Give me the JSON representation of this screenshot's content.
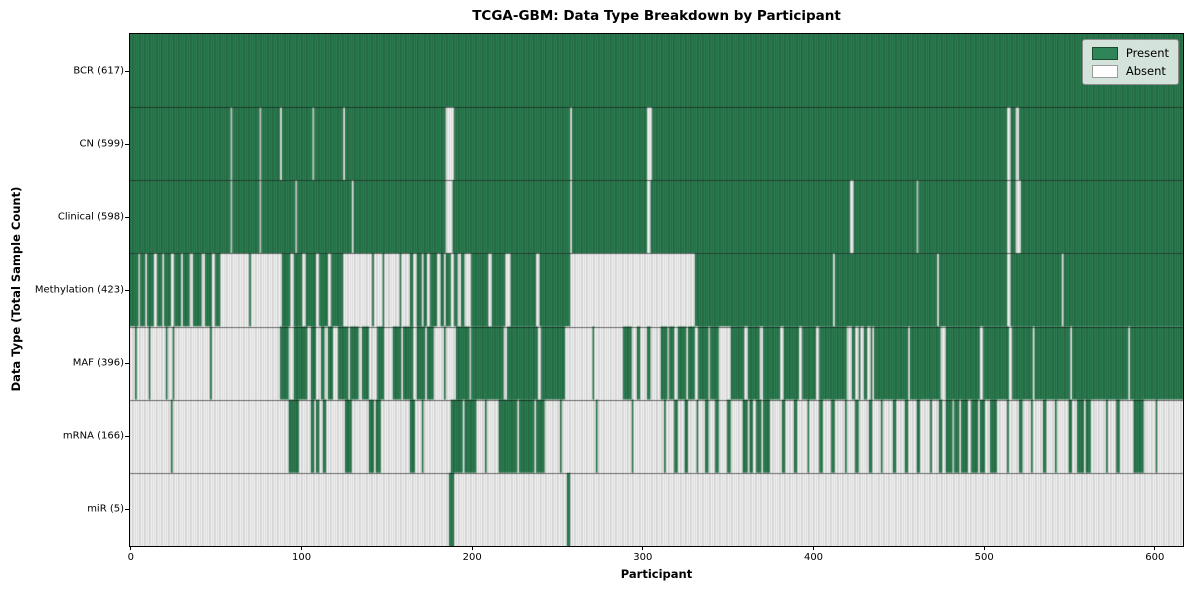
{
  "figure": {
    "title": "TCGA-GBM: Data Type Breakdown by Participant",
    "xlabel": "Participant",
    "ylabel": "Data Type (Total Sample Count)"
  },
  "legend": {
    "present_label": "Present",
    "absent_label": "Absent"
  },
  "chart_data": {
    "type": "heatmap",
    "title": "TCGA-GBM: Data Type Breakdown by Participant",
    "xlabel": "Participant",
    "ylabel": "Data Type (Total Sample Count)",
    "legend_position": "upper right",
    "legend_entries": [
      "Present",
      "Absent"
    ],
    "grid": false,
    "x_ticks": [
      0,
      100,
      200,
      300,
      400,
      500,
      600
    ],
    "x_range": [
      0,
      617
    ],
    "n_participants": 617,
    "colors": {
      "present": "#2f8557",
      "present_edge": "#1b4a2e",
      "absent": "#ffffff",
      "absent_edge": "#9b9b9b",
      "row_divider": "rgba(0,0,0,0.55)",
      "axis": "#000000"
    },
    "rows": [
      {
        "data_type": "BCR",
        "label": "BCR (617)",
        "present_count": 617,
        "runs": "617P"
      },
      {
        "data_type": "CN",
        "label": "CN (599)",
        "present_count": 599,
        "runs": "59P 1A 16P 1A 11P 1A 18P 1A 17P 1A 59P 5A 68P 1A 44P 3A 208P 2A 3P 2A 96P"
      },
      {
        "data_type": "Clinical",
        "label": "Clinical (598)",
        "present_count": 598,
        "runs": "59P 1A 16P 1A 20P 1A 32P 1A 54P 4A 69P 1A 44P 2A 117P 2A 37P 1A 52P 2A 3P 3A 95P"
      },
      {
        "data_type": "Methylation",
        "label": "Methylation (423)",
        "present_count": 423,
        "runs": "5P 1A 3P 1A 4P 2A 3P 1A 4P 2A 4P 1A 4P 2A 5P 2A 4P 2A 3P 3A 14A 1P 18A 5P 2A 5P 2A 6P 2A 5P 2A 7P 13A 4A 1P 5A 1P 3A 6A 1P 5A 2P 2A 3P 1A 2P 2A 4P 2A 2P 1A 3P 2A 2P 2A 2P 4A 10P 2A 8P 3A 15P 2A 18P 73A 81P 1A 60P 1A 40P 2A 30P 1A 70P"
      },
      {
        "data_type": "MAF",
        "label": "MAF (396)",
        "present_count": 396,
        "runs": "3A 1P 7A 1P 9A 1P 3A 1P 1A 20A 1P 40A 5P 3A 6P 2P 2A 3P 3A 2P 2A 3P 3A 6P 1A 5P 2A 4P 2A 3A 4P 5A 5P 1A 6P 2A 5P 1A 4P 6A 1P 6A 8P 1A 7P 12P 2A 18P 2A 14P 2A 14A 1P 15A 2A 5P 3A 2P 4A 2P 4A 2A 4P 1A 3P 2A 5P 1A 4P 2A 6P 1A 5P 7A 8P 2A 7P 2A 10P 2A 9P 2A 8P 2A 16P 1A 2A 2P 2A 1P 2A 2P 2A 1P 1A 20P 1A 18P 3A 20P 2A 15P 2A 12P 1A 21P 1A 3P 30P 1A 31P"
      },
      {
        "data_type": "mRNA",
        "label": "mRNA (166)",
        "present_count": 166,
        "runs": "24A 1P 68A 6P 7A 2P 1A 2P 2A 2P 11A 4P 10A 3P 1A 3P 17A 3P 4A 1P 16A 7P 1A 7P 5A 1P 7A 11P 1A 9P 1A 5P 9A 1P 20A 1P 20A 1P 14A 4A 1P 5A 2P 4A 2P 5A 1P 4A 2P 4A 2P 5A 2P 7A 3P 1A 2P 2A 3P 1A 4P 3A 4A 2P 5A 2P 6A 1P 6A 2P 5A 2P 6A 1P 5A 2P 6A 2P 5A 1P 6A 2P 5A 2P 5A 2P 6A 1P 4A 2P 2A 4P 1A 3P 1A 4P 2A 4P 1A 3P 3A 4P 1A 5A 1P 6A 2P 5A 1P 6A 2P 5A 1P 7A 2P 3A 4P 1A 3P 3A 6A 1P 5A 2P 8A 6P 2A 5A 1P 15A"
      },
      {
        "data_type": "miR",
        "label": "miR (5)",
        "present_count": 5,
        "runs": "187A 3P 66A 2P 359A"
      }
    ]
  }
}
